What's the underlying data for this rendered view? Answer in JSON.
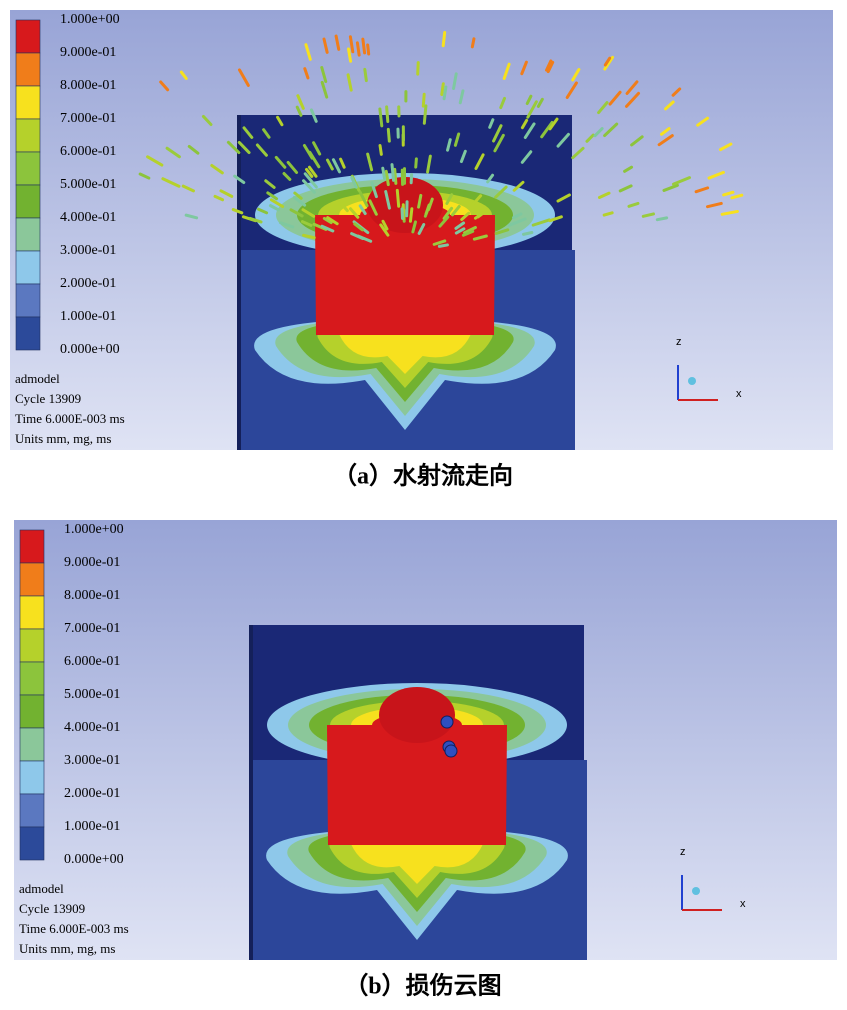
{
  "panels": [
    {
      "legend": {
        "labels": [
          "1.000e+00",
          "9.000e-01",
          "8.000e-01",
          "7.000e-01",
          "6.000e-01",
          "5.000e-01",
          "4.000e-01",
          "3.000e-01",
          "2.000e-01",
          "1.000e-01",
          "0.000e+00"
        ],
        "colors": [
          "#d7191c",
          "#f07d1a",
          "#f7e11e",
          "#b5d12b",
          "#8cc43c",
          "#72b230",
          "#8bc79a",
          "#8ec8ea",
          "#5b78c0",
          "#2c4a9a"
        ]
      },
      "info": [
        "admodel",
        "Cycle 13909",
        "Time 6.000E-003 ms",
        "Units mm, mg, ms"
      ],
      "axes": {
        "z": "z",
        "x": "x"
      },
      "caption": "（a）水射流走向"
    },
    {
      "legend": {
        "labels": [
          "1.000e+00",
          "9.000e-01",
          "8.000e-01",
          "7.000e-01",
          "6.000e-01",
          "5.000e-01",
          "4.000e-01",
          "3.000e-01",
          "2.000e-01",
          "1.000e-01",
          "0.000e+00"
        ],
        "colors": [
          "#d7191c",
          "#f07d1a",
          "#f7e11e",
          "#b5d12b",
          "#8cc43c",
          "#72b230",
          "#8bc79a",
          "#8ec8ea",
          "#5b78c0",
          "#2c4a9a"
        ]
      },
      "info": [
        "admodel",
        "Cycle 13909",
        "Time 6.000E-003 ms",
        "Units mm, mg, ms"
      ],
      "axes": {
        "z": "z",
        "x": "x"
      },
      "caption": "（b）损伤云图"
    }
  ]
}
